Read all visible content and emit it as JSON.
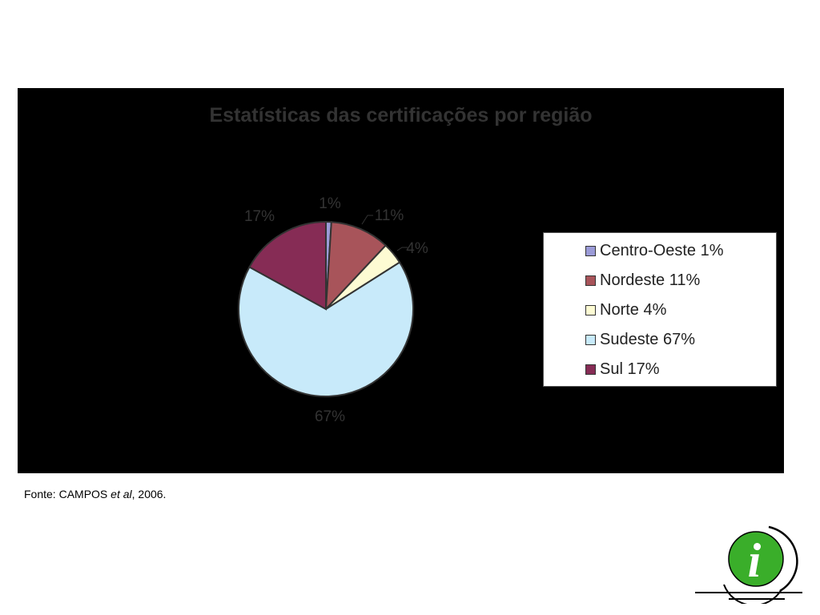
{
  "chart_data": {
    "type": "pie",
    "title": "Estatísticas das certificações por região",
    "slices": [
      {
        "label": "Centro-Oeste",
        "value": 1,
        "pct_label": "1%",
        "legend": "Centro-Oeste 1%",
        "color": "#9b9bd7"
      },
      {
        "label": "Nordeste",
        "value": 11,
        "pct_label": "11%",
        "legend": "Nordeste 11%",
        "color": "#a8545a"
      },
      {
        "label": "Norte",
        "value": 4,
        "pct_label": "4%",
        "legend": "Norte 4%",
        "color": "#fdfbd3"
      },
      {
        "label": "Sudeste",
        "value": 67,
        "pct_label": "67%",
        "legend": "Sudeste 67%",
        "color": "#c8eafa"
      },
      {
        "label": "Sul",
        "value": 17,
        "pct_label": "17%",
        "legend": "Sul 17%",
        "color": "#862c55"
      }
    ],
    "legend_position": "right",
    "background": "#000000"
  },
  "source": {
    "prefix": "Fonte: CAMPOS ",
    "italic": "et al",
    "suffix": ", 2006."
  },
  "logo": {
    "glyph": "i",
    "color": "#3aae2a",
    "icon": "info-icon"
  }
}
